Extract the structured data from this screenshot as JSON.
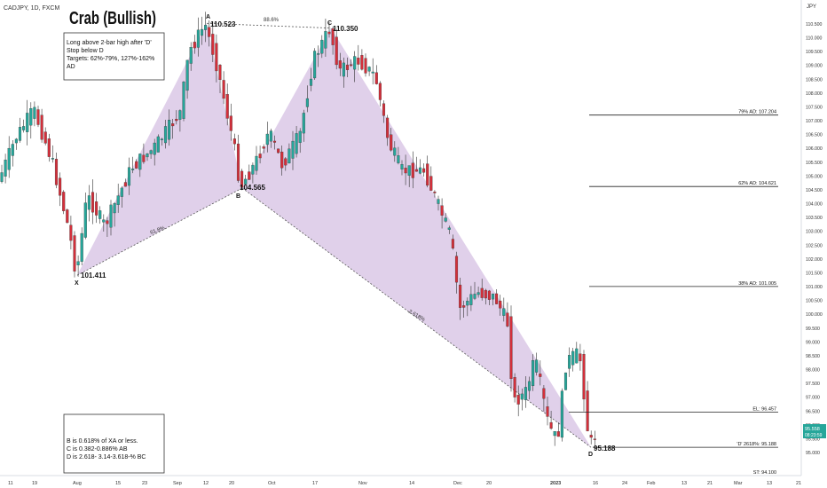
{
  "header": {
    "symbol": "CADJPY, 1D, FXCM"
  },
  "chart_data": {
    "type": "candlestick",
    "title": "Crab (Bullish)",
    "ylabel": "JPY",
    "ylim": [
      94.5,
      111.5
    ],
    "y_ticks": [
      "110.500",
      "110.000",
      "109.500",
      "109.000",
      "108.500",
      "108.000",
      "107.500",
      "107.000",
      "106.500",
      "106.000",
      "105.500",
      "105.000",
      "104.500",
      "104.000",
      "103.500",
      "103.000",
      "102.500",
      "102.000",
      "101.500",
      "101.000",
      "100.500",
      "100.000",
      "99.500",
      "99.000",
      "98.500",
      "98.000",
      "97.500",
      "97.000",
      "96.500",
      "96.000",
      "95.500",
      "95.000"
    ],
    "x_ticks": [
      "11",
      "19",
      "Aug",
      "15",
      "23",
      "Sep",
      "12",
      "20",
      "Oct",
      "17",
      "Nov",
      "14",
      "Dec",
      "20",
      "2023",
      "16",
      "24",
      "Feb",
      "13",
      "21",
      "Mar",
      "13",
      "21"
    ],
    "current_price": {
      "value": "95.558",
      "time": "08:23:59"
    },
    "colors": {
      "up": "#26a69a",
      "down": "#d32f3a",
      "pattern_fill": "#c7a9d9",
      "line": "#333333"
    },
    "pattern_points": [
      {
        "label": "X",
        "price": "101.411",
        "value": 101.411
      },
      {
        "label": "A",
        "price": "110.523",
        "value": 110.523
      },
      {
        "label": "B",
        "price": "104.565",
        "value": 104.565
      },
      {
        "label": "C",
        "price": "110.350",
        "value": 110.35
      },
      {
        "label": "D",
        "price": "95.188",
        "value": 95.188
      }
    ],
    "ratios": {
      "xb": "61.8%",
      "ac": "88.6%",
      "bd": "2.618%"
    },
    "levels": [
      {
        "label": "79% AD: 107.204",
        "value": 107.204
      },
      {
        "label": "62% AD: 104.621",
        "value": 104.621
      },
      {
        "label": "38% AD: 101.005",
        "value": 101.005
      },
      {
        "label": "EL: 96.457",
        "value": 96.457
      },
      {
        "label": "'D' 2618%: 95.188",
        "value": 95.188
      },
      {
        "label": "ST: 94.100",
        "value": 94.1
      }
    ],
    "note_top": [
      "Long above 2-bar high after 'D'",
      "Stop below D",
      "Targets: 62%-79%, 127%-162%",
      "AD"
    ],
    "note_bottom": [
      "B is  0.618%  of XA or less.",
      "C is 0.382-0.886% AB",
      "D is 2.618- 3.14-3.618-% BC"
    ]
  }
}
